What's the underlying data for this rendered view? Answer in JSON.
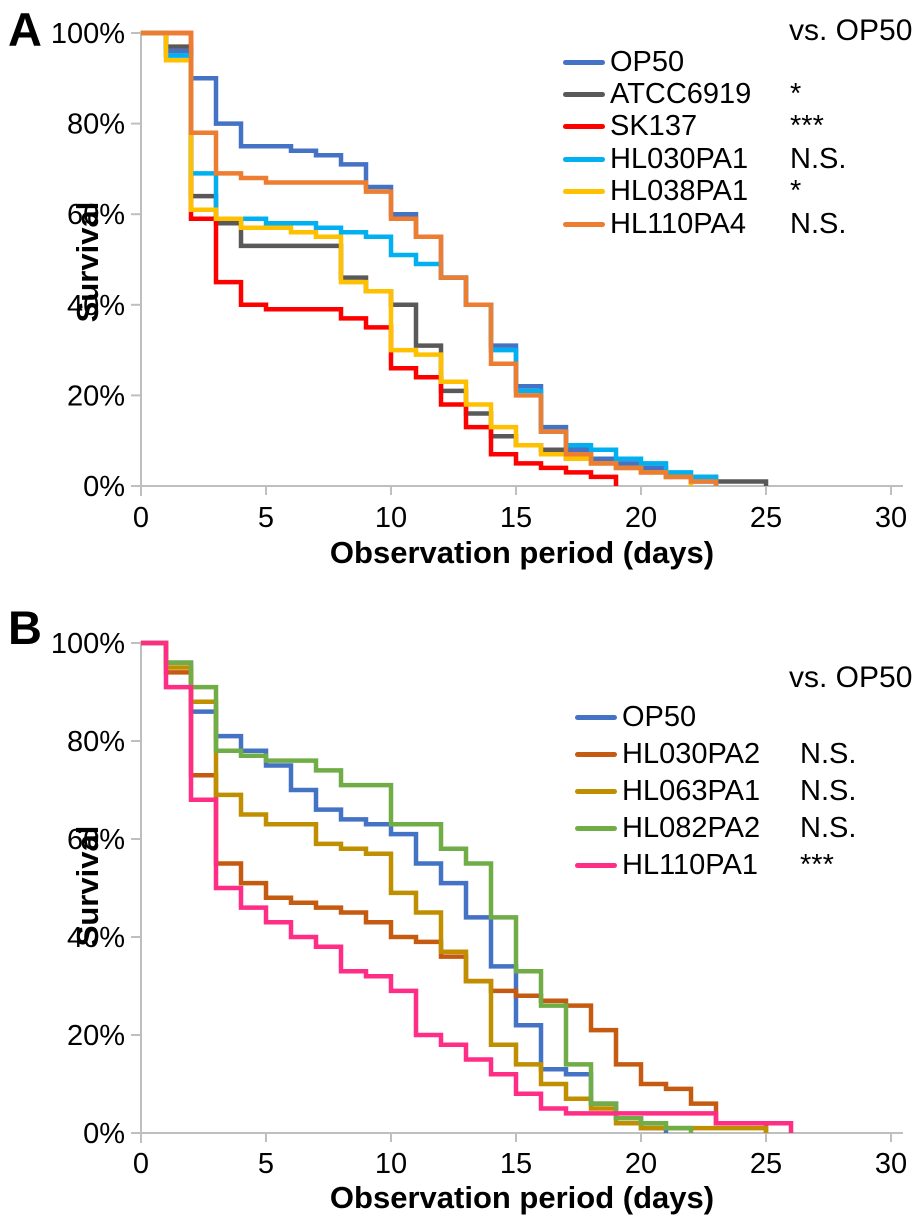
{
  "figure": {
    "background": "#FFFFFF",
    "axis_color": "#BFBFBF",
    "text_color": "#000000",
    "description": "Two-panel Kaplan-Meier worm survival figure"
  },
  "chart_data": [
    {
      "type": "line",
      "step": true,
      "panel_label": "A",
      "x_title": "Observation period (days)",
      "y_title": "Survival",
      "significance_header": "vs. OP50",
      "xlim": [
        0,
        30
      ],
      "ylim": [
        0,
        100
      ],
      "x_ticks": [
        0,
        5,
        10,
        15,
        20,
        25,
        30
      ],
      "y_tick_labels": [
        "100%",
        "80%",
        "60%",
        "40%",
        "20%",
        "0%"
      ],
      "grid": false,
      "legend_position": "top-right",
      "series": [
        {
          "name": "OP50",
          "color": "#4472C4",
          "significance": "",
          "points": [
            [
              0,
              100
            ],
            [
              1,
              96
            ],
            [
              2,
              90
            ],
            [
              3,
              80
            ],
            [
              4,
              75
            ],
            [
              6,
              74
            ],
            [
              7,
              73
            ],
            [
              8,
              71
            ],
            [
              9,
              66
            ],
            [
              10,
              60
            ],
            [
              11,
              55
            ],
            [
              12,
              46
            ],
            [
              13,
              40
            ],
            [
              14,
              31
            ],
            [
              15,
              22
            ],
            [
              16,
              13
            ],
            [
              17,
              8
            ],
            [
              18,
              6
            ],
            [
              19,
              5
            ],
            [
              20,
              4
            ],
            [
              21,
              2
            ],
            [
              22,
              1
            ],
            [
              23,
              0
            ]
          ]
        },
        {
          "name": "ATCC6919",
          "color": "#595959",
          "significance": "*",
          "points": [
            [
              0,
              100
            ],
            [
              1,
              97
            ],
            [
              2,
              64
            ],
            [
              3,
              58
            ],
            [
              4,
              53
            ],
            [
              8,
              46
            ],
            [
              9,
              43
            ],
            [
              10,
              40
            ],
            [
              11,
              31
            ],
            [
              12,
              21
            ],
            [
              13,
              16
            ],
            [
              14,
              11
            ],
            [
              15,
              9
            ],
            [
              16,
              8
            ],
            [
              17,
              6
            ],
            [
              18,
              5
            ],
            [
              19,
              4
            ],
            [
              20,
              3
            ],
            [
              21,
              2
            ],
            [
              23,
              1
            ],
            [
              25,
              0
            ]
          ]
        },
        {
          "name": "SK137",
          "color": "#FF0000",
          "significance": "***",
          "points": [
            [
              0,
              100
            ],
            [
              2,
              59
            ],
            [
              3,
              45
            ],
            [
              4,
              40
            ],
            [
              5,
              39
            ],
            [
              8,
              37
            ],
            [
              9,
              35
            ],
            [
              10,
              26
            ],
            [
              11,
              24
            ],
            [
              12,
              18
            ],
            [
              13,
              13
            ],
            [
              14,
              7
            ],
            [
              15,
              5
            ],
            [
              16,
              4
            ],
            [
              17,
              3
            ],
            [
              18,
              2
            ],
            [
              19,
              0
            ]
          ]
        },
        {
          "name": "HL030PA1",
          "color": "#00B0F0",
          "significance": "N.S.",
          "points": [
            [
              0,
              100
            ],
            [
              1,
              95
            ],
            [
              2,
              69
            ],
            [
              3,
              59
            ],
            [
              5,
              58
            ],
            [
              7,
              57
            ],
            [
              8,
              56
            ],
            [
              9,
              55
            ],
            [
              10,
              51
            ],
            [
              11,
              49
            ],
            [
              12,
              46
            ],
            [
              13,
              40
            ],
            [
              14,
              30
            ],
            [
              15,
              21
            ],
            [
              16,
              12
            ],
            [
              17,
              9
            ],
            [
              18,
              8
            ],
            [
              19,
              6
            ],
            [
              20,
              5
            ],
            [
              21,
              3
            ],
            [
              22,
              2
            ],
            [
              23,
              0
            ]
          ]
        },
        {
          "name": "HL038PA1",
          "color": "#FFC000",
          "significance": "*",
          "points": [
            [
              0,
              100
            ],
            [
              1,
              94
            ],
            [
              2,
              61
            ],
            [
              3,
              59
            ],
            [
              4,
              57
            ],
            [
              6,
              56
            ],
            [
              7,
              55
            ],
            [
              8,
              45
            ],
            [
              9,
              43
            ],
            [
              10,
              30
            ],
            [
              11,
              29
            ],
            [
              12,
              23
            ],
            [
              13,
              18
            ],
            [
              14,
              13
            ],
            [
              15,
              9
            ],
            [
              16,
              7
            ],
            [
              17,
              6
            ],
            [
              18,
              5
            ],
            [
              19,
              4
            ],
            [
              20,
              3
            ],
            [
              21,
              2
            ],
            [
              22,
              0
            ]
          ]
        },
        {
          "name": "HL110PA4",
          "color": "#ED7D31",
          "significance": "N.S.",
          "points": [
            [
              0,
              100
            ],
            [
              2,
              78
            ],
            [
              3,
              69
            ],
            [
              4,
              68
            ],
            [
              5,
              67
            ],
            [
              9,
              65
            ],
            [
              10,
              59
            ],
            [
              11,
              55
            ],
            [
              12,
              46
            ],
            [
              13,
              40
            ],
            [
              14,
              27
            ],
            [
              15,
              20
            ],
            [
              16,
              12
            ],
            [
              17,
              7
            ],
            [
              18,
              5
            ],
            [
              19,
              4
            ],
            [
              20,
              3
            ],
            [
              21,
              2
            ],
            [
              22,
              1
            ],
            [
              23,
              0
            ]
          ]
        }
      ]
    },
    {
      "type": "line",
      "step": true,
      "panel_label": "B",
      "x_title": "Observation period (days)",
      "y_title": "Survival",
      "significance_header": "vs. OP50",
      "xlim": [
        0,
        30
      ],
      "ylim": [
        0,
        100
      ],
      "x_ticks": [
        0,
        5,
        10,
        15,
        20,
        25,
        30
      ],
      "y_tick_labels": [
        "100%",
        "80%",
        "60%",
        "40%",
        "20%",
        "0%"
      ],
      "grid": false,
      "legend_position": "top-right",
      "series": [
        {
          "name": "OP50",
          "color": "#4472C4",
          "significance": "",
          "points": [
            [
              0,
              100
            ],
            [
              1,
              96
            ],
            [
              2,
              86
            ],
            [
              3,
              81
            ],
            [
              4,
              78
            ],
            [
              5,
              75
            ],
            [
              6,
              70
            ],
            [
              7,
              66
            ],
            [
              8,
              64
            ],
            [
              9,
              63
            ],
            [
              10,
              61
            ],
            [
              11,
              55
            ],
            [
              12,
              51
            ],
            [
              13,
              44
            ],
            [
              14,
              34
            ],
            [
              15,
              22
            ],
            [
              16,
              13
            ],
            [
              17,
              12
            ],
            [
              18,
              6
            ],
            [
              19,
              3
            ],
            [
              20,
              1
            ],
            [
              21,
              0
            ]
          ]
        },
        {
          "name": "HL030PA2",
          "color": "#C55A11",
          "significance": "N.S.",
          "points": [
            [
              0,
              100
            ],
            [
              1,
              94
            ],
            [
              2,
              73
            ],
            [
              3,
              55
            ],
            [
              4,
              51
            ],
            [
              5,
              48
            ],
            [
              6,
              47
            ],
            [
              7,
              46
            ],
            [
              8,
              45
            ],
            [
              9,
              43
            ],
            [
              10,
              40
            ],
            [
              11,
              39
            ],
            [
              12,
              36
            ],
            [
              13,
              31
            ],
            [
              14,
              29
            ],
            [
              15,
              28
            ],
            [
              16,
              27
            ],
            [
              17,
              26
            ],
            [
              18,
              21
            ],
            [
              19,
              14
            ],
            [
              20,
              10
            ],
            [
              21,
              9
            ],
            [
              22,
              6
            ],
            [
              23,
              2
            ],
            [
              25,
              0
            ]
          ]
        },
        {
          "name": "HL063PA1",
          "color": "#BF8F00",
          "significance": "N.S.",
          "points": [
            [
              0,
              100
            ],
            [
              1,
              95
            ],
            [
              2,
              88
            ],
            [
              3,
              69
            ],
            [
              4,
              65
            ],
            [
              5,
              63
            ],
            [
              7,
              59
            ],
            [
              8,
              58
            ],
            [
              9,
              57
            ],
            [
              10,
              49
            ],
            [
              11,
              45
            ],
            [
              12,
              37
            ],
            [
              13,
              31
            ],
            [
              14,
              18
            ],
            [
              15,
              14
            ],
            [
              16,
              10
            ],
            [
              17,
              7
            ],
            [
              18,
              5
            ],
            [
              19,
              2
            ],
            [
              20,
              1
            ],
            [
              25,
              0
            ]
          ]
        },
        {
          "name": "HL082PA2",
          "color": "#70AD47",
          "significance": "N.S.",
          "points": [
            [
              0,
              100
            ],
            [
              1,
              96
            ],
            [
              2,
              91
            ],
            [
              3,
              78
            ],
            [
              4,
              77
            ],
            [
              5,
              76
            ],
            [
              7,
              74
            ],
            [
              8,
              71
            ],
            [
              10,
              63
            ],
            [
              12,
              58
            ],
            [
              13,
              55
            ],
            [
              14,
              44
            ],
            [
              15,
              33
            ],
            [
              16,
              26
            ],
            [
              17,
              14
            ],
            [
              18,
              6
            ],
            [
              19,
              3
            ],
            [
              20,
              2
            ],
            [
              21,
              1
            ],
            [
              22,
              0
            ]
          ]
        },
        {
          "name": "HL110PA1",
          "color": "#FF2D85",
          "significance": "***",
          "points": [
            [
              0,
              100
            ],
            [
              1,
              91
            ],
            [
              2,
              68
            ],
            [
              3,
              50
            ],
            [
              4,
              46
            ],
            [
              5,
              43
            ],
            [
              6,
              40
            ],
            [
              7,
              38
            ],
            [
              8,
              33
            ],
            [
              9,
              32
            ],
            [
              10,
              29
            ],
            [
              11,
              20
            ],
            [
              12,
              18
            ],
            [
              13,
              15
            ],
            [
              14,
              12
            ],
            [
              15,
              8
            ],
            [
              16,
              5
            ],
            [
              17,
              4
            ],
            [
              23,
              2
            ],
            [
              26,
              0
            ]
          ]
        }
      ]
    }
  ]
}
